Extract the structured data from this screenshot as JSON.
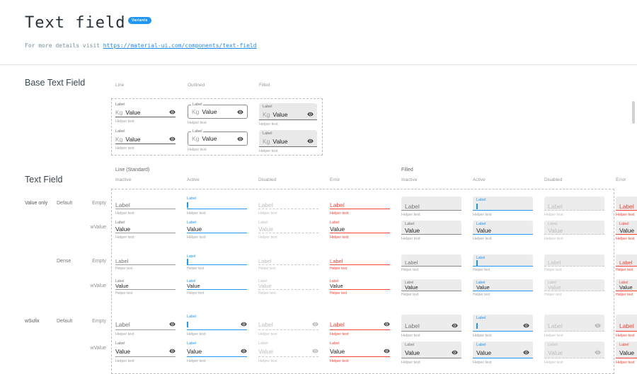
{
  "header": {
    "title": "Text field",
    "badge": "Variants",
    "subtitle_prefix": "For more details visit ",
    "subtitle_link": "https://material-ui.com/components/text-field"
  },
  "base_section": {
    "title": "Base Text Field",
    "columns": [
      "Line",
      "Outlined",
      "Filled"
    ],
    "field": {
      "label": "Label",
      "prefix": "Kg",
      "value": "Value",
      "helper": "Helper text",
      "icon": "visibility-icon"
    }
  },
  "matrix_section": {
    "title": "Text Field",
    "groups": [
      {
        "label": "Line (Standard)",
        "variant": "line",
        "states": [
          "Inactive",
          "Active",
          "Disabled",
          "Error"
        ]
      },
      {
        "label": "Filled",
        "variant": "filled",
        "states": [
          "Inactive",
          "Active",
          "Disabled",
          "Error"
        ]
      }
    ],
    "rows": [
      {
        "group": "Value only",
        "sub": "Default",
        "name": "Empty",
        "content": "empty",
        "dense": false,
        "suffix": false
      },
      {
        "group": "",
        "sub": "",
        "name": "wValue",
        "content": "value",
        "dense": false,
        "suffix": false
      },
      {
        "group": "",
        "sub": "Dense",
        "name": "Empty",
        "content": "empty",
        "dense": true,
        "suffix": false
      },
      {
        "group": "",
        "sub": "",
        "name": "wValue",
        "content": "value",
        "dense": true,
        "suffix": false
      },
      {
        "group": "wSufix",
        "sub": "Default",
        "name": "Empty",
        "content": "empty",
        "dense": false,
        "suffix": true
      },
      {
        "group": "",
        "sub": "",
        "name": "wValue",
        "content": "value",
        "dense": false,
        "suffix": true
      }
    ],
    "field_text": {
      "label": "Label",
      "value": "Value",
      "helper": "Helper text"
    }
  },
  "colors": {
    "accent": "#2196f3",
    "error": "#f44336",
    "filled_bg": "#ececec"
  }
}
